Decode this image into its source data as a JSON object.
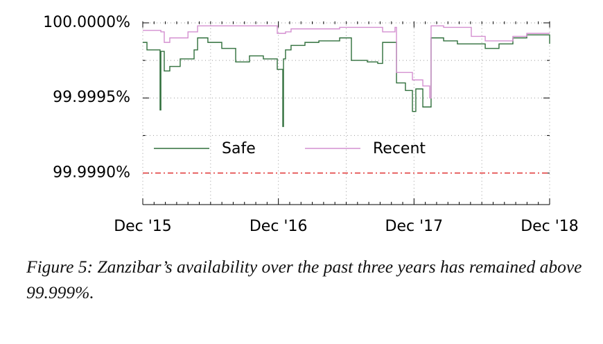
{
  "chart_data": {
    "type": "line",
    "step": true,
    "caption": "Figure 5: Zanzibar’s availability over the past three years has remained above 99.999%.",
    "xlim": [
      0,
      36
    ],
    "xticks": [
      {
        "value": 0,
        "label": "Dec '15"
      },
      {
        "value": 12,
        "label": "Dec '16"
      },
      {
        "value": 24,
        "label": "Dec '17"
      },
      {
        "value": 36,
        "label": "Dec '18"
      }
    ],
    "xminor": [
      1,
      2,
      3,
      4,
      5,
      6,
      7,
      8,
      9,
      10,
      11,
      13,
      14,
      15,
      16,
      17,
      18,
      19,
      20,
      21,
      22,
      23,
      25,
      26,
      27,
      28,
      29,
      30,
      31,
      32,
      33,
      34,
      35
    ],
    "xgrid": [
      0,
      6,
      12,
      18,
      24,
      30,
      36
    ],
    "ylim": [
      99.99879,
      100.00001
    ],
    "yticks": [
      {
        "value": 99.999,
        "label": "99.9990%"
      },
      {
        "value": 99.9995,
        "label": "99.9995%"
      },
      {
        "value": 100,
        "label": "100.0000%"
      }
    ],
    "yminor": [
      99.99925,
      99.99975
    ],
    "ygrid": [
      99.99925,
      99.9995,
      99.99975,
      100
    ],
    "grid": true,
    "threshold": {
      "value": 99.999,
      "color": "#e03030"
    },
    "series": [
      {
        "name": "Safe",
        "color": "#2e6e3a",
        "x": [
          0,
          0.37,
          1.53,
          1.6,
          1.9,
          2.39,
          3.31,
          4.54,
          4.85,
          5.76,
          6.99,
          8.22,
          9.44,
          10.67,
          11.9,
          12.39,
          12.45,
          12.63,
          13.12,
          14.35,
          15.58,
          17.42,
          18.34,
          18.46,
          19.87,
          20.79,
          21.22,
          22.32,
          22.45,
          23.24,
          23.86,
          24.16,
          24.78,
          25.39,
          25.51,
          26.62,
          27.84,
          29.07,
          30.3,
          31.52,
          32.75,
          33.98,
          35.82,
          36
        ],
        "values": [
          99.99987,
          99.99982,
          99.99942,
          99.99981,
          99.99968,
          99.99971,
          99.99976,
          99.99982,
          99.9999,
          99.99987,
          99.99983,
          99.99974,
          99.99978,
          99.99976,
          99.99969,
          99.99931,
          99.99976,
          99.99982,
          99.99985,
          99.99987,
          99.99988,
          99.9999,
          99.9999,
          99.99975,
          99.99974,
          99.99973,
          99.99987,
          99.99987,
          99.9996,
          99.99955,
          99.99941,
          99.99956,
          99.99944,
          99.99944,
          99.9999,
          99.99988,
          99.99986,
          99.99986,
          99.99983,
          99.99986,
          99.9999,
          99.99992,
          99.99992,
          99.99986
        ]
      },
      {
        "name": "Recent",
        "color": "#d48fd0",
        "x": [
          0,
          1.6,
          1.9,
          2.39,
          4.0,
          4.85,
          11.9,
          12.63,
          13.12,
          17.42,
          18.34,
          21.22,
          22.32,
          22.45,
          23.86,
          24.78,
          25.39,
          25.51,
          26.62,
          29.07,
          30.3,
          32.75,
          33.98,
          36
        ],
        "values": [
          99.99995,
          99.99994,
          99.99987,
          99.9999,
          99.99994,
          99.99998,
          99.99993,
          99.99994,
          99.99996,
          99.99997,
          99.99997,
          99.99994,
          99.99997,
          99.99967,
          99.99962,
          99.99958,
          99.9995,
          99.99998,
          99.99997,
          99.99991,
          99.99988,
          99.99991,
          99.99993,
          99.99993
        ]
      }
    ]
  }
}
